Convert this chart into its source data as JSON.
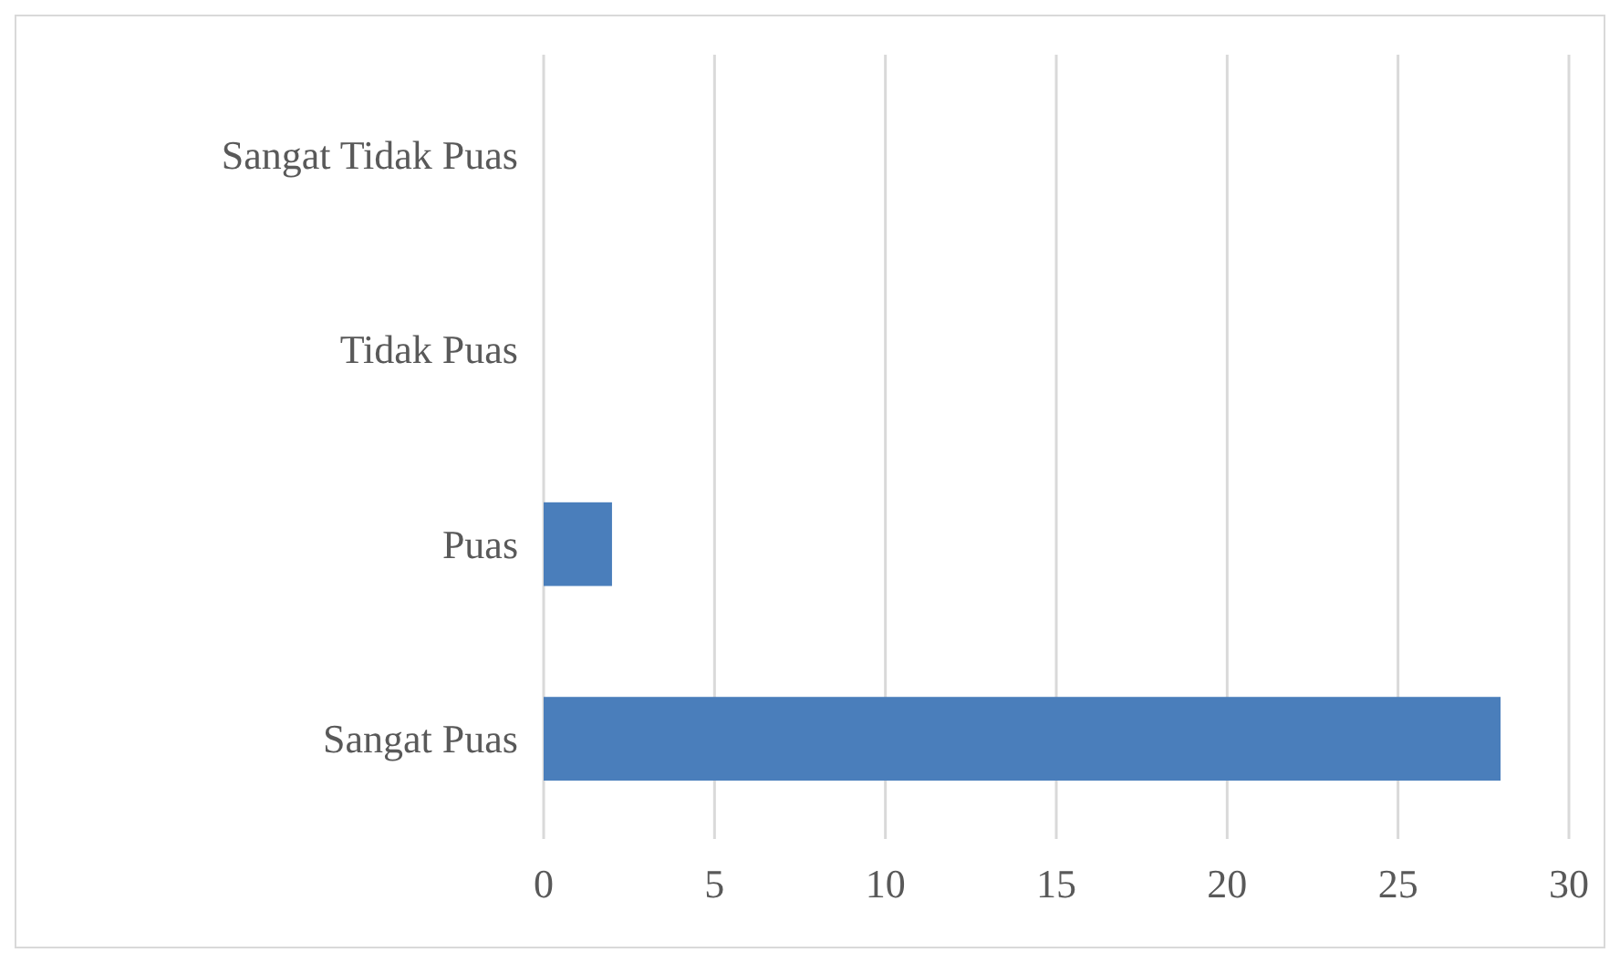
{
  "chart_data": {
    "type": "bar",
    "orientation": "horizontal",
    "categories": [
      "Sangat Tidak Puas",
      "Tidak Puas",
      "Puas",
      "Sangat Puas"
    ],
    "values": [
      0,
      0,
      2,
      28
    ],
    "color": "#4a7ebb",
    "xlim": [
      0,
      30
    ],
    "xticks": [
      0,
      5,
      10,
      15,
      20,
      25,
      30
    ],
    "grid": "x"
  }
}
